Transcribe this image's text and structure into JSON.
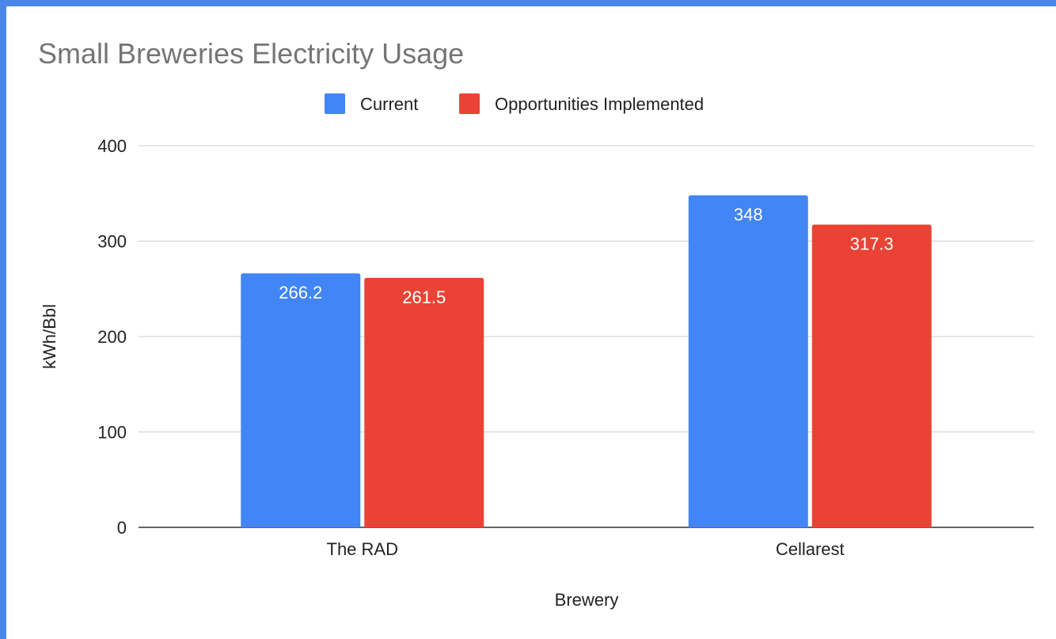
{
  "chart_data": {
    "type": "bar",
    "title": "Small Breweries Electricity Usage",
    "xlabel": "Brewery",
    "ylabel": "kWh/Bbl",
    "categories": [
      "The RAD",
      "Cellarest"
    ],
    "series": [
      {
        "name": "Current",
        "color": "#4285f4",
        "values": [
          266.2,
          348
        ],
        "labels": [
          "266.2",
          "348"
        ]
      },
      {
        "name": "Opportunities Implemented",
        "color": "#ea4335",
        "values": [
          261.5,
          317.3
        ],
        "labels": [
          "261.5",
          "317.3"
        ]
      }
    ],
    "ylim": [
      0,
      400
    ],
    "yticks": [
      0,
      100,
      200,
      300,
      400
    ],
    "grid": true,
    "legend_position": "top-center"
  }
}
